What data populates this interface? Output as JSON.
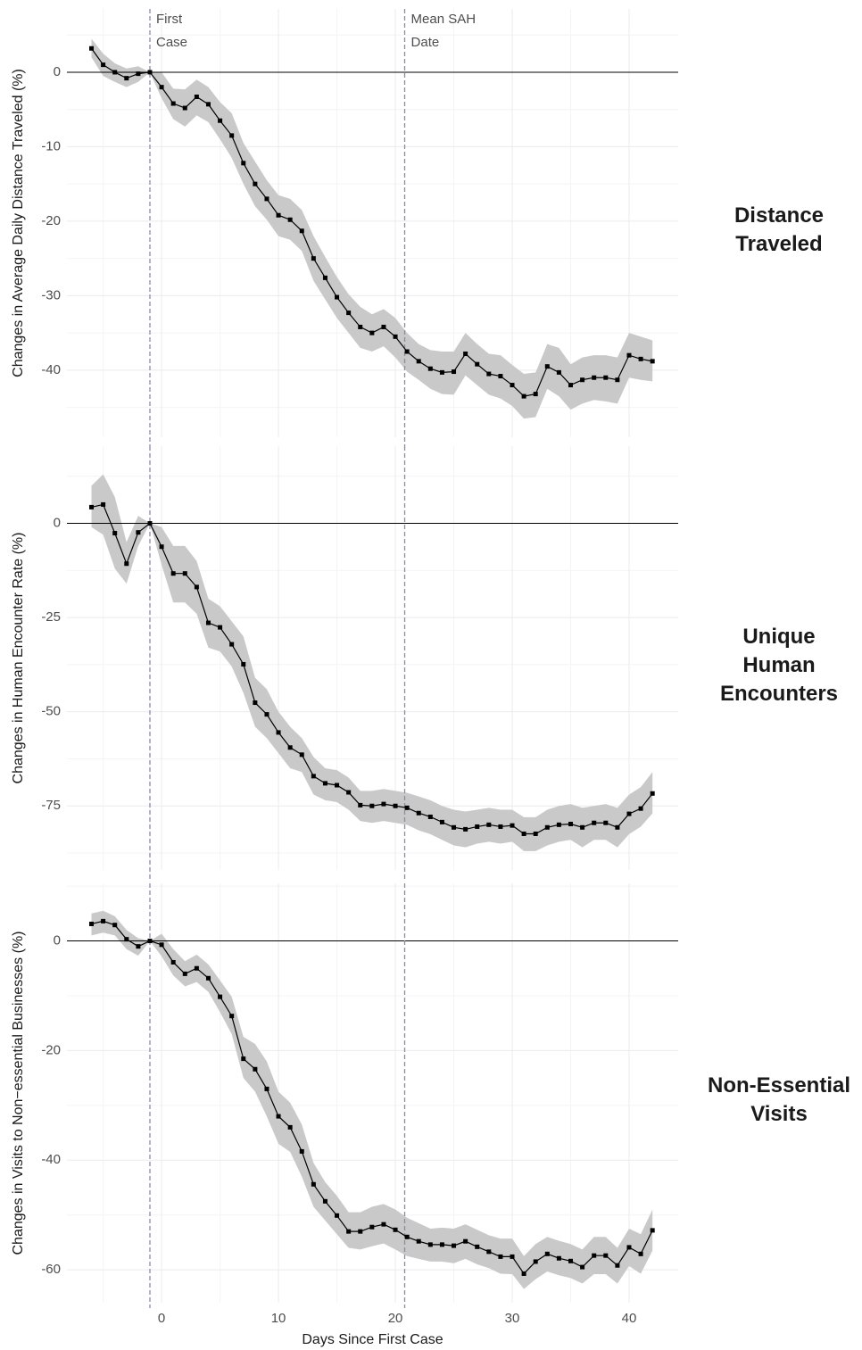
{
  "chart_data": [
    {
      "type": "line",
      "y_label": "Changes in Average Daily Distance Traveled (%)",
      "panel_label": [
        "Distance",
        "Traveled"
      ],
      "x": [
        -6,
        -5,
        -4,
        -3,
        -2,
        -1,
        0,
        1,
        2,
        3,
        4,
        5,
        6,
        7,
        8,
        9,
        10,
        11,
        12,
        13,
        14,
        15,
        16,
        17,
        18,
        19,
        20,
        21,
        22,
        23,
        24,
        25,
        26,
        27,
        28,
        29,
        30,
        31,
        32,
        33,
        34,
        35,
        36,
        37,
        38,
        39,
        40,
        41,
        42
      ],
      "values": [
        3.2,
        1,
        0,
        -0.8,
        -0.2,
        0,
        -2,
        -4.2,
        -4.8,
        -3.3,
        -4.3,
        -6.5,
        -8.5,
        -12.2,
        -15,
        -17,
        -19.2,
        -19.8,
        -21.3,
        -25,
        -27.6,
        -30.2,
        -32.3,
        -34.2,
        -35,
        -34.2,
        -35.5,
        -37.5,
        -38.8,
        -39.8,
        -40.3,
        -40.2,
        -37.8,
        -39.2,
        -40.5,
        -40.8,
        -42,
        -43.5,
        -43.2,
        -39.5,
        -40.3,
        -42,
        -41.3,
        -41,
        -41,
        -41.3,
        -38,
        -38.5,
        -38.8
      ],
      "upper": [
        4.5,
        2.5,
        1.2,
        0.5,
        0.8,
        0,
        0,
        -2.2,
        -2.3,
        -1,
        -2,
        -4,
        -5.5,
        -9.5,
        -12,
        -14.5,
        -16.5,
        -17,
        -18.5,
        -22,
        -24.8,
        -27.5,
        -29.8,
        -31.5,
        -32.5,
        -31.8,
        -33,
        -35,
        -36.5,
        -37.3,
        -37.5,
        -37.5,
        -35,
        -36.5,
        -37.8,
        -38,
        -39.3,
        -40.5,
        -40.3,
        -36.5,
        -37,
        -39.2,
        -38.3,
        -38,
        -38,
        -38.3,
        -35,
        -35.5,
        -36
      ],
      "lower": [
        2,
        -0.5,
        -1.3,
        -2,
        -1.3,
        0,
        -3.5,
        -6.3,
        -7.3,
        -5.8,
        -6.7,
        -9,
        -11.5,
        -15,
        -18,
        -19.8,
        -22,
        -22.5,
        -24,
        -28,
        -30.5,
        -33,
        -35,
        -37,
        -37.5,
        -36.8,
        -38.3,
        -40.2,
        -41.3,
        -42.5,
        -43.2,
        -43.3,
        -40.7,
        -42,
        -43.3,
        -43.8,
        -44.8,
        -46.5,
        -46.3,
        -42.5,
        -43.5,
        -45.3,
        -44.5,
        -44,
        -44.2,
        -44.5,
        -41,
        -41.3,
        -41.5
      ],
      "color": "#000000",
      "band_color": "#c9c9c9",
      "xlim": [
        -8.1,
        44.2
      ],
      "xticks": [
        0,
        10,
        20,
        30,
        40
      ],
      "ylim": [
        -49,
        8.5
      ],
      "yticks": [
        0,
        -10,
        -20,
        -30,
        -40
      ],
      "hline": 0,
      "vlines": [
        -1,
        20.8
      ],
      "vline_labels": [
        [
          "First",
          "Case"
        ],
        [
          "Mean SAH",
          "Date"
        ]
      ],
      "grid": true
    },
    {
      "type": "line",
      "y_label": "Changes in Human Encounter Rate (%)",
      "panel_label": [
        "Unique",
        "Human",
        "Encounters"
      ],
      "x": [
        -6,
        -5,
        -4,
        -3,
        -2,
        -1,
        0,
        1,
        2,
        3,
        4,
        5,
        6,
        7,
        8,
        9,
        10,
        11,
        12,
        13,
        14,
        15,
        16,
        17,
        18,
        19,
        20,
        21,
        22,
        23,
        24,
        25,
        26,
        27,
        28,
        29,
        30,
        31,
        32,
        33,
        34,
        35,
        36,
        37,
        38,
        39,
        40,
        41,
        42
      ],
      "values": [
        4.3,
        5,
        -2.6,
        -10.7,
        -2.4,
        0,
        -6.2,
        -13.3,
        -13.3,
        -16.9,
        -26.4,
        -27.6,
        -32.1,
        -37.4,
        -47.6,
        -50.7,
        -55.5,
        -59.5,
        -61.4,
        -67.1,
        -69,
        -69.5,
        -71.4,
        -74.8,
        -75,
        -74.5,
        -75,
        -75.5,
        -76.9,
        -77.9,
        -79.3,
        -80.7,
        -81.2,
        -80.5,
        -80,
        -80.5,
        -80.2,
        -82.4,
        -82.4,
        -80.7,
        -80,
        -79.8,
        -80.7,
        -79.5,
        -79.5,
        -80.7,
        -77.1,
        -75.7,
        -71.7
      ],
      "upper": [
        10,
        13,
        7,
        -5,
        2,
        0,
        -1,
        -6,
        -6,
        -10,
        -20,
        -22,
        -26,
        -30,
        -41,
        -44,
        -50,
        -54,
        -57,
        -62,
        -65,
        -65.5,
        -67.5,
        -71,
        -71,
        -70.5,
        -71,
        -71.5,
        -72.5,
        -73.5,
        -75,
        -76,
        -76.5,
        -76,
        -75.5,
        -76,
        -76,
        -78,
        -78,
        -76,
        -75,
        -74.5,
        -75.5,
        -75,
        -74.5,
        -75.5,
        -72,
        -70,
        -66
      ],
      "lower": [
        -1,
        -3,
        -12,
        -16,
        -6,
        0,
        -11,
        -21,
        -21,
        -24,
        -33,
        -34,
        -38,
        -45,
        -54,
        -57,
        -61,
        -65,
        -66,
        -72,
        -73.5,
        -74,
        -76,
        -79,
        -79.5,
        -79,
        -79.5,
        -80,
        -81.5,
        -82.5,
        -84,
        -85.5,
        -86,
        -85,
        -84.5,
        -85,
        -84.5,
        -87,
        -87,
        -85.5,
        -84.5,
        -84,
        -86,
        -84,
        -84,
        -86,
        -82.5,
        -80.5,
        -77
      ],
      "color": "#000000",
      "band_color": "#c9c9c9",
      "xlim": [
        -8.1,
        44.2
      ],
      "xticks": [
        0,
        10,
        20,
        30,
        40
      ],
      "ylim": [
        -92,
        20.5
      ],
      "yticks": [
        0,
        -25,
        -50,
        -75
      ],
      "hline": 0,
      "vlines": [
        -1,
        20.8
      ],
      "grid": true
    },
    {
      "type": "line",
      "y_label": "Changes in Visits to Non−essential Businesses (%)",
      "panel_label": [
        "Non-Essential",
        "Visits"
      ],
      "x_label": "Days Since First Case",
      "x": [
        -6,
        -5,
        -4,
        -3,
        -2,
        -1,
        0,
        1,
        2,
        3,
        4,
        5,
        6,
        7,
        8,
        9,
        10,
        11,
        12,
        13,
        14,
        15,
        16,
        17,
        18,
        19,
        20,
        21,
        22,
        23,
        24,
        25,
        26,
        27,
        28,
        29,
        30,
        31,
        32,
        33,
        34,
        35,
        36,
        37,
        38,
        39,
        40,
        41,
        42
      ],
      "values": [
        3.1,
        3.6,
        2.9,
        0.3,
        -1,
        0,
        -0.7,
        -3.9,
        -6,
        -5,
        -6.8,
        -10.2,
        -13.7,
        -21.5,
        -23.4,
        -27,
        -32,
        -34,
        -38.4,
        -44.4,
        -47.5,
        -50.1,
        -53,
        -53,
        -52.2,
        -51.7,
        -52.7,
        -54,
        -54.8,
        -55.4,
        -55.4,
        -55.6,
        -54.8,
        -55.8,
        -56.7,
        -57.6,
        -57.6,
        -60.7,
        -58.5,
        -57.1,
        -57.9,
        -58.4,
        -59.5,
        -57.4,
        -57.4,
        -59.2,
        -55.9,
        -57.1,
        -52.8
      ],
      "upper": [
        5,
        5.5,
        4.5,
        2,
        0.5,
        0,
        1.3,
        -1.5,
        -3.7,
        -2.5,
        -4.3,
        -7.2,
        -10.2,
        -17.5,
        -18.8,
        -22,
        -27.5,
        -29.5,
        -33.5,
        -40.5,
        -44,
        -46.5,
        -49.5,
        -49.5,
        -48.5,
        -48,
        -49,
        -50.5,
        -51.5,
        -52.5,
        -52.3,
        -52.5,
        -51.7,
        -52.7,
        -53.7,
        -54.3,
        -54.3,
        -57.5,
        -55.3,
        -54,
        -54.7,
        -55.3,
        -56.3,
        -54,
        -54,
        -56,
        -52.5,
        -53.5,
        -49
      ],
      "lower": [
        1,
        1.5,
        1,
        -1.5,
        -2.7,
        0,
        -2.8,
        -6.3,
        -8.3,
        -7.5,
        -9.3,
        -13,
        -17,
        -25,
        -27.5,
        -32,
        -37,
        -38.5,
        -43,
        -48.5,
        -51,
        -53.5,
        -56,
        -56.3,
        -55.7,
        -55.2,
        -56.3,
        -57.5,
        -58,
        -58.5,
        -58.5,
        -58.8,
        -58,
        -59,
        -59.7,
        -60.7,
        -60.8,
        -63.5,
        -61.7,
        -60.3,
        -61,
        -61.5,
        -62.5,
        -60.8,
        -60.8,
        -62.5,
        -59.3,
        -60.7,
        -56.5
      ],
      "color": "#000000",
      "band_color": "#c9c9c9",
      "xlim": [
        -8.1,
        44.2
      ],
      "xticks": [
        0,
        10,
        20,
        30,
        40
      ],
      "ylim": [
        -66,
        10.5
      ],
      "yticks": [
        0,
        -20,
        -40,
        -60
      ],
      "hline": 0,
      "vlines": [
        -1,
        20.8
      ],
      "grid": true
    }
  ]
}
